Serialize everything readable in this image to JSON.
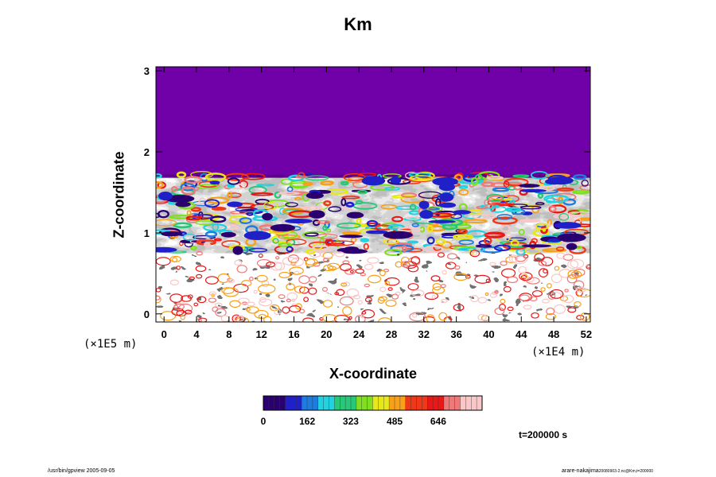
{
  "chart_data": {
    "type": "heatmap",
    "title": "Km",
    "xlabel": "X-coordinate",
    "ylabel": "Z-coordinate",
    "x_unit": "(×1E4 m)",
    "y_unit": "(×1E5 m)",
    "xlim": [
      -1,
      52.5
    ],
    "ylim": [
      -0.1,
      3.05
    ],
    "x_ticks": [
      0,
      4,
      8,
      12,
      16,
      20,
      24,
      28,
      32,
      36,
      40,
      44,
      48,
      52
    ],
    "y_ticks": [
      0,
      1,
      2,
      3
    ],
    "colorbar": {
      "ticks": [
        0,
        162,
        323,
        485,
        646
      ],
      "colors": [
        "#2a0070",
        "#1f20c8",
        "#1e7ce0",
        "#22d2e0",
        "#28c878",
        "#80e020",
        "#e8e818",
        "#f8a018",
        "#f03818",
        "#e81818",
        "#f07878",
        "#f8c8c8"
      ]
    },
    "fields": {
      "upper_layer": {
        "z_range": [
          1.68,
          3.05
        ],
        "value": 0
      },
      "turbulent_zone": {
        "z_range": [
          0.75,
          1.72
        ]
      },
      "lower_zone": {
        "z_range": [
          -0.1,
          0.75
        ]
      }
    },
    "annotation": "t=200000 s"
  },
  "footer": {
    "left": "/usr/bin/gpview 2005-09-05",
    "right": "arare-nakajima",
    "right_sub": "20080903-2.nc@Km,t=200000"
  }
}
